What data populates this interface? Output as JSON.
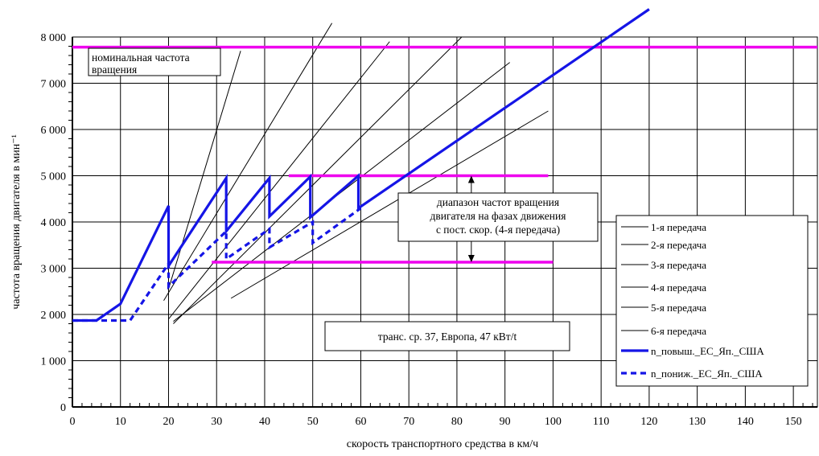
{
  "chart_data": {
    "type": "line",
    "xlabel": "скорость транспортного средства в км/ч",
    "ylabel": "частота вращения двигателя в мин⁻¹",
    "xlim": [
      0,
      155
    ],
    "ylim": [
      0,
      8000
    ],
    "x_ticks": [
      "0",
      "10",
      "20",
      "30",
      "40",
      "50",
      "60",
      "70",
      "80",
      "90",
      "100",
      "110",
      "120",
      "130",
      "140",
      "150"
    ],
    "y_ticks": [
      "0",
      "1 000",
      "2 000",
      "3 000",
      "4 000",
      "5 000",
      "6 000",
      "7 000",
      "8 000"
    ],
    "grid": true,
    "legend_position": "right",
    "gear_lines": [
      {
        "name": "1-я передача",
        "points": [
          [
            20,
            2550
          ],
          [
            35,
            7700
          ]
        ]
      },
      {
        "name": "2-я передача",
        "points": [
          [
            19,
            2300
          ],
          [
            54,
            8300
          ]
        ]
      },
      {
        "name": "3-я передача",
        "points": [
          [
            20,
            1900
          ],
          [
            66,
            7900
          ]
        ]
      },
      {
        "name": "4-я передача",
        "points": [
          [
            21,
            1800
          ],
          [
            81,
            8000
          ]
        ]
      },
      {
        "name": "5-я передача",
        "points": [
          [
            21,
            1850
          ],
          [
            91,
            7450
          ]
        ]
      },
      {
        "name": "6-я передача",
        "points": [
          [
            33,
            2350
          ],
          [
            99,
            6400
          ]
        ]
      }
    ],
    "series": [
      {
        "name": "n_повыш._ЕС_Яп._США",
        "color": "#1515e6",
        "style": "solid",
        "points": [
          [
            0,
            1870
          ],
          [
            5,
            1870
          ],
          [
            10,
            2230
          ],
          [
            20,
            4350
          ],
          [
            20,
            3050
          ],
          [
            32,
            4950
          ],
          [
            32,
            3800
          ],
          [
            41,
            4950
          ],
          [
            41,
            4120
          ],
          [
            49.5,
            4980
          ],
          [
            49.5,
            4100
          ],
          [
            59.5,
            5000
          ],
          [
            59.5,
            4300
          ],
          [
            120,
            8600
          ]
        ]
      },
      {
        "name": "n_пониж._ЕС_Яп._США",
        "color": "#1515e6",
        "style": "dashed",
        "points": [
          [
            0,
            1870
          ],
          [
            12,
            1870
          ],
          [
            20,
            3100
          ],
          [
            20,
            2600
          ],
          [
            32,
            3800
          ],
          [
            32,
            3200
          ],
          [
            41,
            3850
          ],
          [
            41,
            3450
          ],
          [
            50,
            4000
          ],
          [
            50,
            3550
          ],
          [
            60,
            4300
          ]
        ]
      }
    ],
    "reference_lines": [
      {
        "label": "номинальная частота вращения",
        "y": 7780,
        "x": [
          0,
          155
        ],
        "color": "#ee00ee"
      },
      {
        "y": 5000,
        "x": [
          45,
          99
        ],
        "color": "#ee00ee"
      },
      {
        "y": 3130,
        "x": [
          29,
          100
        ],
        "color": "#ee00ee"
      }
    ],
    "annotations": {
      "rated_speed": [
        "номинальная частота",
        "вращения"
      ],
      "range": [
        "диапазон частот вращения",
        "двигателя на фазах движения",
        "с пост. скор. (4-я передача)"
      ],
      "vehicle": "транс. ср. 37, Европа, 47 кВт/t"
    },
    "legend": [
      {
        "label": "1-я передача",
        "style": "thin"
      },
      {
        "label": "2-я передача",
        "style": "thin"
      },
      {
        "label": "3-я передача",
        "style": "thin"
      },
      {
        "label": "4-я передача",
        "style": "thin"
      },
      {
        "label": "5-я передача",
        "style": "thin"
      },
      {
        "label": "6-я передача",
        "style": "thin"
      },
      {
        "label": "n_повыш._ЕС_Яп._США",
        "style": "solid-blue"
      },
      {
        "label": "n_пониж._ЕС_Яп._США",
        "style": "dashed-blue"
      }
    ]
  }
}
